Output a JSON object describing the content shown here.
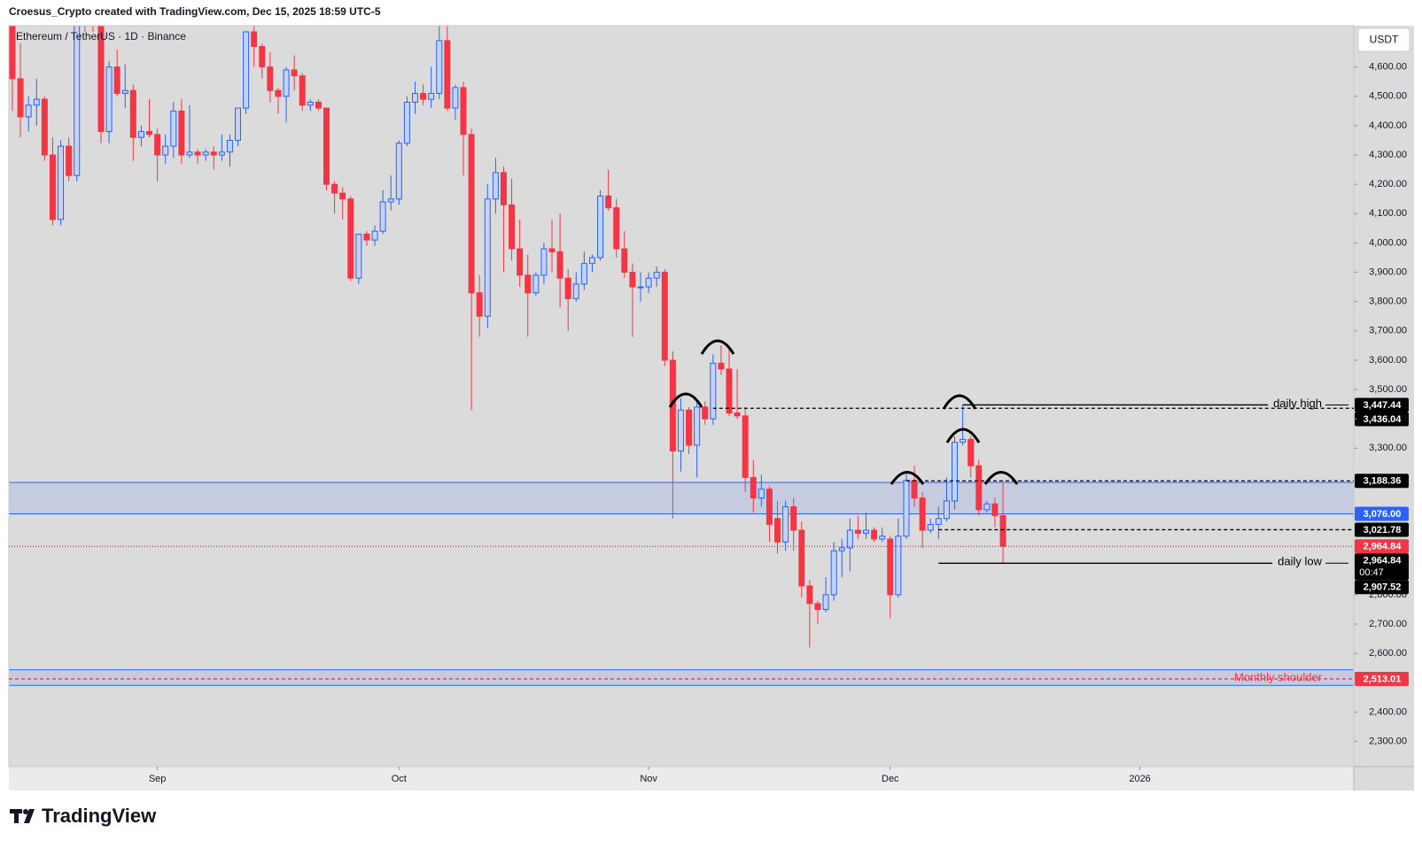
{
  "header": {
    "credit": "Croesus_Crypto created with TradingView.com, Dec 15, 2025 18:59 UTC-5",
    "brand": "TradingView"
  },
  "chart_data": {
    "type": "candlestick",
    "symbol": "Ethereum / TetherUS · 1D · Binance",
    "currency": "USDT",
    "up_color": "#2962ff",
    "down_color": "#f23645",
    "x": [
      "2025-08-14",
      "2025-08-15",
      "2025-08-16",
      "2025-08-17",
      "2025-08-18",
      "2025-08-19",
      "2025-08-20",
      "2025-08-21",
      "2025-08-22",
      "2025-08-23",
      "2025-08-24",
      "2025-08-25",
      "2025-08-26",
      "2025-08-27",
      "2025-08-28",
      "2025-08-29",
      "2025-08-30",
      "2025-08-31",
      "2025-09-01",
      "2025-09-02",
      "2025-09-03",
      "2025-09-04",
      "2025-09-05",
      "2025-09-06",
      "2025-09-07",
      "2025-09-08",
      "2025-09-09",
      "2025-09-10",
      "2025-09-11",
      "2025-09-12",
      "2025-09-13",
      "2025-09-14",
      "2025-09-15",
      "2025-09-16",
      "2025-09-17",
      "2025-09-18",
      "2025-09-19",
      "2025-09-20",
      "2025-09-21",
      "2025-09-22",
      "2025-09-23",
      "2025-09-24",
      "2025-09-25",
      "2025-09-26",
      "2025-09-27",
      "2025-09-28",
      "2025-09-29",
      "2025-09-30",
      "2025-10-01",
      "2025-10-02",
      "2025-10-03",
      "2025-10-04",
      "2025-10-05",
      "2025-10-06",
      "2025-10-07",
      "2025-10-08",
      "2025-10-09",
      "2025-10-10",
      "2025-10-11",
      "2025-10-12",
      "2025-10-13",
      "2025-10-14",
      "2025-10-15",
      "2025-10-16",
      "2025-10-17",
      "2025-10-18",
      "2025-10-19",
      "2025-10-20",
      "2025-10-21",
      "2025-10-22",
      "2025-10-23",
      "2025-10-24",
      "2025-10-25",
      "2025-10-26",
      "2025-10-27",
      "2025-10-28",
      "2025-10-29",
      "2025-10-30",
      "2025-10-31",
      "2025-11-01",
      "2025-11-02",
      "2025-11-03",
      "2025-11-04",
      "2025-11-05",
      "2025-11-06",
      "2025-11-07",
      "2025-11-08",
      "2025-11-09",
      "2025-11-10",
      "2025-11-11",
      "2025-11-12",
      "2025-11-13",
      "2025-11-14",
      "2025-11-15",
      "2025-11-16",
      "2025-11-17",
      "2025-11-18",
      "2025-11-19",
      "2025-11-20",
      "2025-11-21",
      "2025-11-22",
      "2025-11-23",
      "2025-11-24",
      "2025-11-25",
      "2025-11-26",
      "2025-11-27",
      "2025-11-28",
      "2025-11-29",
      "2025-11-30",
      "2025-12-01",
      "2025-12-02",
      "2025-12-03",
      "2025-12-04",
      "2025-12-05",
      "2025-12-06",
      "2025-12-07",
      "2025-12-08",
      "2025-12-09",
      "2025-12-10",
      "2025-12-11",
      "2025-12-12",
      "2025-12-13",
      "2025-12-14",
      "2025-12-15"
    ],
    "ohlc": [
      [
        4750,
        4790,
        4450,
        4560
      ],
      [
        4560,
        4680,
        4360,
        4430
      ],
      [
        4430,
        4500,
        4380,
        4470
      ],
      [
        4470,
        4560,
        4400,
        4490
      ],
      [
        4490,
        4500,
        4280,
        4300
      ],
      [
        4300,
        4360,
        4060,
        4080
      ],
      [
        4080,
        4350,
        4060,
        4330
      ],
      [
        4330,
        4360,
        4210,
        4230
      ],
      [
        4230,
        4880,
        4210,
        4830
      ],
      [
        4830,
        4870,
        4720,
        4780
      ],
      [
        4780,
        4950,
        4720,
        4770
      ],
      [
        4770,
        4780,
        4340,
        4380
      ],
      [
        4380,
        4620,
        4340,
        4600
      ],
      [
        4600,
        4660,
        4500,
        4510
      ],
      [
        4510,
        4610,
        4460,
        4520
      ],
      [
        4520,
        4540,
        4280,
        4360
      ],
      [
        4360,
        4400,
        4330,
        4380
      ],
      [
        4380,
        4490,
        4360,
        4370
      ],
      [
        4370,
        4390,
        4210,
        4300
      ],
      [
        4300,
        4370,
        4270,
        4330
      ],
      [
        4330,
        4480,
        4290,
        4450
      ],
      [
        4450,
        4490,
        4270,
        4300
      ],
      [
        4300,
        4470,
        4290,
        4310
      ],
      [
        4310,
        4320,
        4270,
        4300
      ],
      [
        4300,
        4320,
        4280,
        4310
      ],
      [
        4310,
        4330,
        4250,
        4300
      ],
      [
        4300,
        4370,
        4280,
        4310
      ],
      [
        4310,
        4370,
        4260,
        4350
      ],
      [
        4350,
        4460,
        4330,
        4460
      ],
      [
        4460,
        4720,
        4440,
        4720
      ],
      [
        4720,
        4770,
        4600,
        4670
      ],
      [
        4670,
        4680,
        4560,
        4600
      ],
      [
        4600,
        4650,
        4480,
        4520
      ],
      [
        4520,
        4530,
        4440,
        4500
      ],
      [
        4500,
        4600,
        4410,
        4590
      ],
      [
        4590,
        4640,
        4520,
        4570
      ],
      [
        4570,
        4580,
        4450,
        4470
      ],
      [
        4470,
        4490,
        4450,
        4480
      ],
      [
        4480,
        4490,
        4450,
        4460
      ],
      [
        4460,
        4460,
        4180,
        4200
      ],
      [
        4200,
        4210,
        4100,
        4170
      ],
      [
        4170,
        4190,
        4080,
        4150
      ],
      [
        4150,
        4160,
        3870,
        3880
      ],
      [
        3880,
        4030,
        3860,
        4030
      ],
      [
        4030,
        4040,
        3990,
        4010
      ],
      [
        4010,
        4060,
        3990,
        4040
      ],
      [
        4040,
        4180,
        4030,
        4140
      ],
      [
        4140,
        4230,
        4110,
        4150
      ],
      [
        4150,
        4350,
        4130,
        4340
      ],
      [
        4340,
        4500,
        4330,
        4480
      ],
      [
        4480,
        4550,
        4440,
        4510
      ],
      [
        4510,
        4540,
        4470,
        4490
      ],
      [
        4490,
        4600,
        4460,
        4510
      ],
      [
        4510,
        4760,
        4490,
        4690
      ],
      [
        4690,
        4750,
        4450,
        4460
      ],
      [
        4460,
        4540,
        4420,
        4530
      ],
      [
        4530,
        4550,
        4230,
        4370
      ],
      [
        4370,
        4390,
        3430,
        3830
      ],
      [
        3830,
        3890,
        3680,
        3750
      ],
      [
        3750,
        4200,
        3710,
        4150
      ],
      [
        4150,
        4290,
        4100,
        4240
      ],
      [
        4240,
        4260,
        3900,
        4130
      ],
      [
        4130,
        4220,
        3940,
        3980
      ],
      [
        3980,
        4080,
        3850,
        3890
      ],
      [
        3890,
        3960,
        3680,
        3830
      ],
      [
        3830,
        3900,
        3820,
        3890
      ],
      [
        3890,
        4000,
        3860,
        3980
      ],
      [
        3980,
        4080,
        3900,
        3970
      ],
      [
        3970,
        4100,
        3780,
        3880
      ],
      [
        3880,
        3910,
        3700,
        3810
      ],
      [
        3810,
        3900,
        3800,
        3860
      ],
      [
        3860,
        3970,
        3840,
        3930
      ],
      [
        3930,
        3960,
        3900,
        3950
      ],
      [
        3950,
        4180,
        3940,
        4160
      ],
      [
        4160,
        4250,
        4110,
        4120
      ],
      [
        4120,
        4150,
        3950,
        3980
      ],
      [
        3980,
        4040,
        3880,
        3900
      ],
      [
        3900,
        3930,
        3680,
        3850
      ],
      [
        3850,
        3900,
        3800,
        3850
      ],
      [
        3850,
        3900,
        3830,
        3880
      ],
      [
        3880,
        3920,
        3850,
        3900
      ],
      [
        3900,
        3910,
        3580,
        3600
      ],
      [
        3600,
        3630,
        3060,
        3290
      ],
      [
        3290,
        3470,
        3220,
        3430
      ],
      [
        3430,
        3440,
        3280,
        3310
      ],
      [
        3310,
        3460,
        3200,
        3440
      ],
      [
        3440,
        3460,
        3380,
        3400
      ],
      [
        3400,
        3620,
        3380,
        3590
      ],
      [
        3590,
        3650,
        3550,
        3570
      ],
      [
        3570,
        3640,
        3410,
        3420
      ],
      [
        3420,
        3570,
        3400,
        3410
      ],
      [
        3410,
        3440,
        3150,
        3200
      ],
      [
        3200,
        3260,
        3080,
        3130
      ],
      [
        3130,
        3210,
        3100,
        3160
      ],
      [
        3160,
        3170,
        2980,
        3040
      ],
      [
        3060,
        3120,
        2940,
        2980
      ],
      [
        2980,
        3120,
        2950,
        3100
      ],
      [
        3100,
        3130,
        2950,
        3020
      ],
      [
        3020,
        3050,
        2790,
        2830
      ],
      [
        2830,
        2850,
        2620,
        2770
      ],
      [
        2770,
        2780,
        2700,
        2750
      ],
      [
        2750,
        2860,
        2740,
        2800
      ],
      [
        2800,
        2980,
        2780,
        2950
      ],
      [
        2950,
        2990,
        2860,
        2960
      ],
      [
        2960,
        3060,
        2880,
        3020
      ],
      [
        3020,
        3070,
        2990,
        3010
      ],
      [
        3010,
        3080,
        2990,
        3020
      ],
      [
        3020,
        3030,
        2980,
        2990
      ],
      [
        2990,
        3030,
        2980,
        3000
      ],
      [
        2990,
        3000,
        2720,
        2800
      ],
      [
        2800,
        3060,
        2790,
        3000
      ],
      [
        3000,
        3220,
        2990,
        3190
      ],
      [
        3190,
        3240,
        3100,
        3130
      ],
      [
        3130,
        3150,
        2960,
        3020
      ],
      [
        3020,
        3060,
        3010,
        3040
      ],
      [
        3040,
        3100,
        2990,
        3060
      ],
      [
        3060,
        3200,
        3050,
        3120
      ],
      [
        3120,
        3340,
        3090,
        3320
      ],
      [
        3320,
        3447.44,
        3310,
        3330
      ],
      [
        3330,
        3340,
        3200,
        3240
      ],
      [
        3240,
        3260,
        3070,
        3090
      ],
      [
        3090,
        3120,
        3080,
        3110
      ],
      [
        3110,
        3130,
        3030,
        3070
      ],
      [
        3070,
        3180,
        2907.52,
        2964.84
      ]
    ],
    "xlim": [
      "2025-08-14",
      "2026-01-28"
    ],
    "xticks": [
      {
        "value": "2025-09-01",
        "label": "Sep"
      },
      {
        "value": "2025-10-01",
        "label": "Oct"
      },
      {
        "value": "2025-11-01",
        "label": "Nov"
      },
      {
        "value": "2025-12-01",
        "label": "Dec"
      },
      {
        "value": "2026-01-01",
        "label": "2026"
      }
    ],
    "ylim": [
      2214,
      4741
    ],
    "yticks": [
      {
        "value": 2300,
        "label": "2,300.00"
      },
      {
        "value": 2400,
        "label": "2,400.00"
      },
      {
        "value": 2600,
        "label": "2,600.00"
      },
      {
        "value": 2700,
        "label": "2,700.00"
      },
      {
        "value": 2800,
        "label": "2,800.00"
      },
      {
        "value": 3300,
        "label": "3,300.00"
      },
      {
        "value": 3400,
        "label": "3,400.00"
      },
      {
        "value": 3500,
        "label": "3,500.00"
      },
      {
        "value": 3600,
        "label": "3,600.00"
      },
      {
        "value": 3700,
        "label": "3,700.00"
      },
      {
        "value": 3800,
        "label": "3,800.00"
      },
      {
        "value": 3900,
        "label": "3,900.00"
      },
      {
        "value": 4000,
        "label": "4,000.00"
      },
      {
        "value": 4100,
        "label": "4,100.00"
      },
      {
        "value": 4200,
        "label": "4,200.00"
      },
      {
        "value": 4300,
        "label": "4,300.00"
      },
      {
        "value": 4400,
        "label": "4,400.00"
      },
      {
        "value": 4500,
        "label": "4,500.00"
      },
      {
        "value": 4600,
        "label": "4,600.00"
      }
    ],
    "zones": [
      {
        "low": 3076,
        "high": 3183
      },
      {
        "low": 2491,
        "high": 2544
      }
    ],
    "levels": [
      {
        "value": 3447.44,
        "start": "2025-12-10",
        "style": "solid",
        "color": "#000000",
        "text": "daily high"
      },
      {
        "value": 3436.04,
        "start": "2025-11-09",
        "style": "dashed",
        "color": "#000000"
      },
      {
        "value": 3188.36,
        "start": "2025-12-03",
        "style": "dashed",
        "color": "#000000"
      },
      {
        "value": 3021.78,
        "start": "2025-12-07",
        "style": "dashed",
        "color": "#000000"
      },
      {
        "value": 2907.52,
        "start": "2025-12-07",
        "style": "solid",
        "color": "#000000",
        "text": "daily low"
      },
      {
        "value": 2964.84,
        "style": "dotted",
        "color": "#f23645"
      },
      {
        "value": 2513.01,
        "style": "dashed",
        "color": "#f23645",
        "text": "Monthly shoulder"
      }
    ],
    "price_tags": [
      {
        "value": 3447.44,
        "label": "3,447.44",
        "color": "#000000"
      },
      {
        "value": 3436.04,
        "label": "3,436.04",
        "color": "#000000"
      },
      {
        "value": 3188.36,
        "label": "3,188.36",
        "color": "#000000"
      },
      {
        "value": 3076,
        "label": "3,076.00",
        "color": "#2962ff"
      },
      {
        "value": 3021.78,
        "label": "3,021.78",
        "color": "#000000"
      },
      {
        "value": 2964.84,
        "label": "2,964.84",
        "color": "#f23645"
      },
      {
        "value": 2964.84,
        "label": "2,964.84",
        "color": "#000000",
        "sub": "00:47"
      },
      {
        "value": 2907.52,
        "label": "2,907.52",
        "color": "#000000"
      },
      {
        "value": 2513.01,
        "label": "2,513.01",
        "color": "#f23645"
      }
    ]
  }
}
